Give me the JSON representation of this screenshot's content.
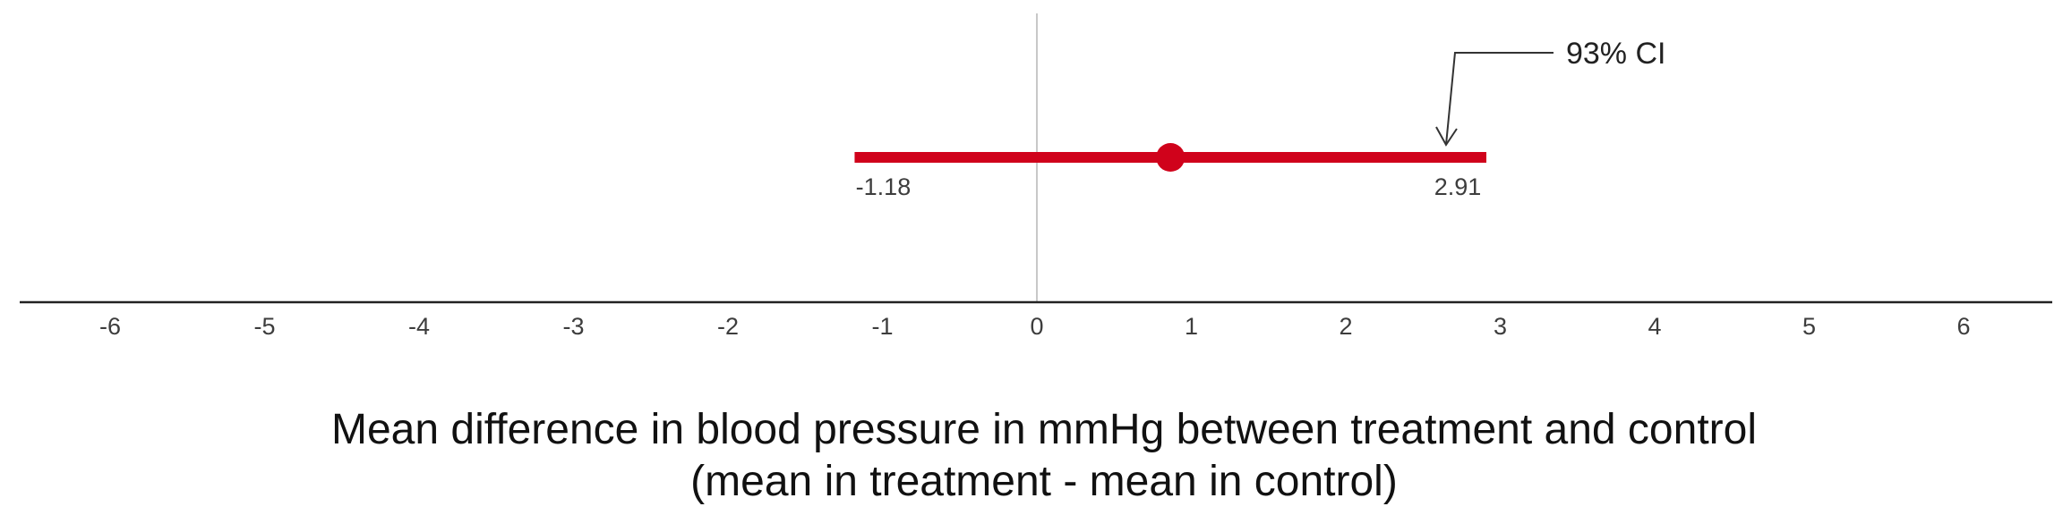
{
  "chart_data": {
    "type": "interval",
    "point_estimate": 0.865,
    "ci_lower": -1.18,
    "ci_upper": 2.91,
    "ci_lower_label": "-1.18",
    "ci_upper_label": "2.91",
    "annotation": "93% CI",
    "x_ticks": [
      -6,
      -5,
      -4,
      -3,
      -2,
      -1,
      0,
      1,
      2,
      3,
      4,
      5,
      6
    ],
    "x_tick_labels": [
      "-6",
      "-5",
      "-4",
      "-3",
      "-2",
      "-1",
      "0",
      "1",
      "2",
      "3",
      "4",
      "5",
      "6"
    ],
    "xlim": [
      -6.6,
      6.6
    ],
    "xlabel_line1": "Mean difference in blood pressure in mmHg between treatment and control",
    "xlabel_line2": "(mean in treatment - mean in control)",
    "grid": false,
    "colors": {
      "interval": "#d0021b",
      "reference_line": "#c8c8c8",
      "axis": "#222222",
      "annotation": "#333333"
    }
  }
}
